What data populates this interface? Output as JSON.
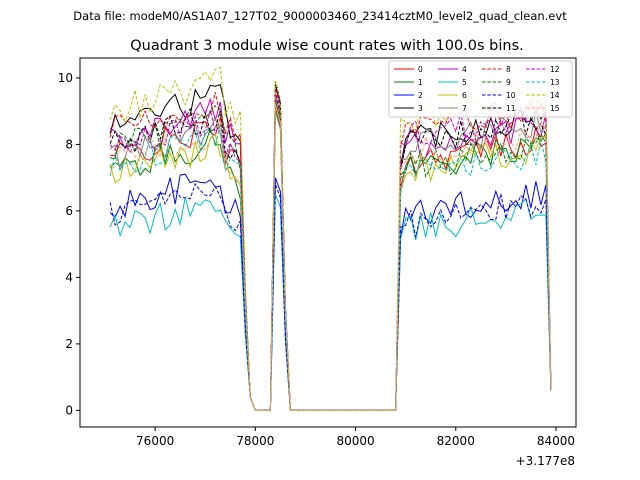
{
  "chart_data": {
    "type": "line",
    "suptitle": "Data file: modeM0/AS1A07_127T02_9000003460_23414cztM0_level2_quad_clean.evt",
    "title": "Quadrant 3 module wise count rates with 100.0s bins.",
    "xlabel": "",
    "ylabel": "",
    "x_offset_label": "+3.177e8",
    "xlim": [
      74500,
      84400
    ],
    "ylim": [
      -0.5,
      10.6
    ],
    "x_ticks": [
      76000,
      78000,
      80000,
      82000,
      84000
    ],
    "x_tick_labels": [
      "76000",
      "78000",
      "80000",
      "82000",
      "84000"
    ],
    "y_ticks": [
      0,
      2,
      4,
      6,
      8,
      10
    ],
    "y_tick_labels": [
      "0",
      "2",
      "4",
      "6",
      "8",
      "10"
    ],
    "legend_position": "top-right",
    "legend_columns": 4,
    "segments": [
      {
        "start": 75100,
        "end": 77700,
        "step": 100
      },
      {
        "start": 77800,
        "end": 78300,
        "step": 100
      },
      {
        "start": 78400,
        "end": 78600,
        "step": 100
      },
      {
        "start": 78700,
        "end": 80800,
        "step": 100
      },
      {
        "start": 80800,
        "end": 83800,
        "step": 100
      },
      {
        "start": 83900,
        "end": 83900,
        "step": 100
      }
    ],
    "series": [
      {
        "name": "0",
        "color": "#ff0000",
        "dash": false,
        "levels": [
          7.6,
          9.1,
          7.5
        ]
      },
      {
        "name": "1",
        "color": "#008000",
        "dash": false,
        "levels": [
          7.2,
          9.3,
          7.3
        ]
      },
      {
        "name": "2",
        "color": "#0000ff",
        "dash": false,
        "levels": [
          6.1,
          7.0,
          5.9
        ]
      },
      {
        "name": "3",
        "color": "#000000",
        "dash": false,
        "levels": [
          8.6,
          9.8,
          8.2
        ]
      },
      {
        "name": "4",
        "color": "#bf00bf",
        "dash": false,
        "levels": [
          8.2,
          9.5,
          7.9
        ]
      },
      {
        "name": "5",
        "color": "#00bfbf",
        "dash": false,
        "levels": [
          5.4,
          6.5,
          5.4
        ]
      },
      {
        "name": "6",
        "color": "#bfbf00",
        "dash": false,
        "levels": [
          7.1,
          9.2,
          7.2
        ]
      },
      {
        "name": "7",
        "color": "#808080",
        "dash": false,
        "levels": [
          7.6,
          9.0,
          7.9
        ]
      },
      {
        "name": "8",
        "color": "#ff0000",
        "dash": true,
        "levels": [
          8.4,
          9.7,
          8.4
        ]
      },
      {
        "name": "9",
        "color": "#008000",
        "dash": true,
        "levels": [
          7.9,
          9.4,
          7.3
        ]
      },
      {
        "name": "10",
        "color": "#0000ff",
        "dash": true,
        "levels": [
          5.9,
          6.8,
          5.6
        ]
      },
      {
        "name": "11",
        "color": "#000000",
        "dash": true,
        "levels": [
          8.0,
          9.9,
          8.0
        ]
      },
      {
        "name": "12",
        "color": "#bf00bf",
        "dash": true,
        "levels": [
          7.8,
          9.6,
          8.3
        ]
      },
      {
        "name": "13",
        "color": "#00bfbf",
        "dash": true,
        "levels": [
          7.4,
          9.0,
          7.1
        ]
      },
      {
        "name": "14",
        "color": "#bfbf00",
        "dash": true,
        "levels": [
          9.0,
          9.9,
          8.8
        ]
      },
      {
        "name": "15",
        "color": "#ffa07a",
        "dash": true,
        "levels": [
          7.5,
          9.2,
          7.7
        ]
      }
    ]
  }
}
